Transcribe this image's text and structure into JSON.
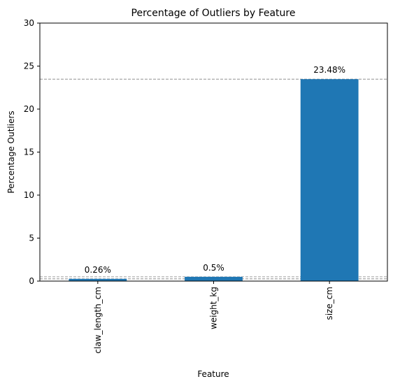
{
  "chart_data": {
    "type": "bar",
    "title": "Percentage of Outliers by Feature",
    "xlabel": "Feature",
    "ylabel": "Percentage Outliers",
    "categories": [
      "claw_length_cm",
      "weight_kg",
      "size_cm"
    ],
    "values": [
      0.26,
      0.5,
      23.48
    ],
    "data_labels": [
      "0.26%",
      "0.5%",
      "23.48%"
    ],
    "ylim": [
      0,
      30
    ],
    "yticks": [
      0,
      5,
      10,
      15,
      20,
      25,
      30
    ],
    "reference_lines": [
      0.26,
      0.5,
      23.48
    ],
    "grid": false,
    "bar_color": "#1f77b4",
    "reference_line_color": "#808080"
  }
}
